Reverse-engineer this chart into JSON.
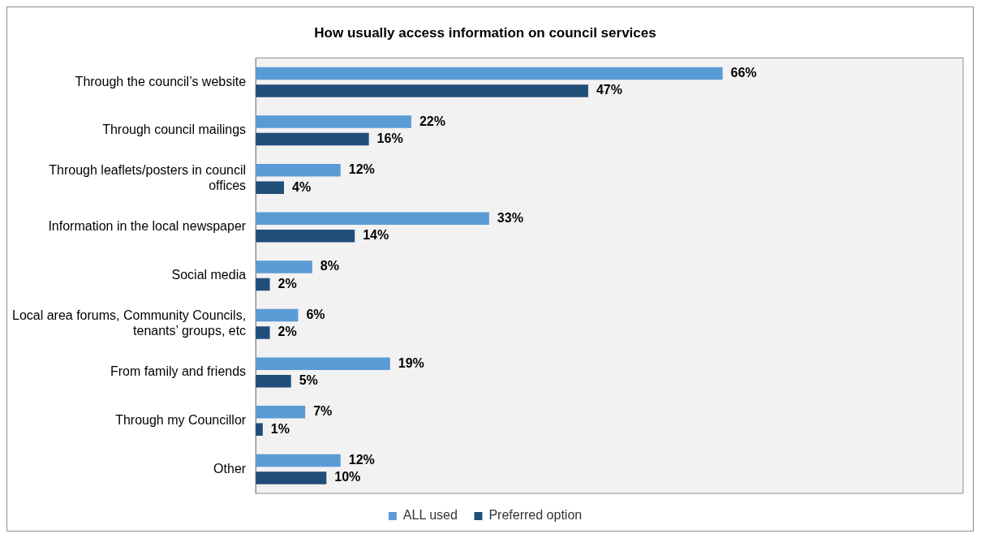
{
  "chart_data": {
    "type": "bar",
    "orientation": "horizontal",
    "title": "How usually access information on council services",
    "categories": [
      "Through the council’s website",
      "Through council mailings",
      "Through leaflets/posters in council offices",
      "Information in the local newspaper",
      "Social media",
      "Local area forums, Community Councils, tenants’ groups, etc",
      "From family and friends",
      "Through my Councillor",
      "Other"
    ],
    "series": [
      {
        "name": "ALL used",
        "color": "#5b9bd5",
        "values": [
          66,
          22,
          12,
          33,
          8,
          6,
          19,
          7,
          12
        ],
        "value_labels": [
          "66%",
          "22%",
          "12%",
          "33%",
          "8%",
          "6%",
          "19%",
          "7%",
          "12%"
        ]
      },
      {
        "name": "Preferred option",
        "color": "#1f4e79",
        "values": [
          47,
          16,
          4,
          14,
          2,
          2,
          5,
          1,
          10
        ],
        "value_labels": [
          "47%",
          "16%",
          "4%",
          "14%",
          "2%",
          "2%",
          "5%",
          "1%",
          "10%"
        ]
      }
    ],
    "xlim": [
      0,
      100
    ],
    "tick_labels": "y",
    "grid": false,
    "legend": "bottom"
  }
}
